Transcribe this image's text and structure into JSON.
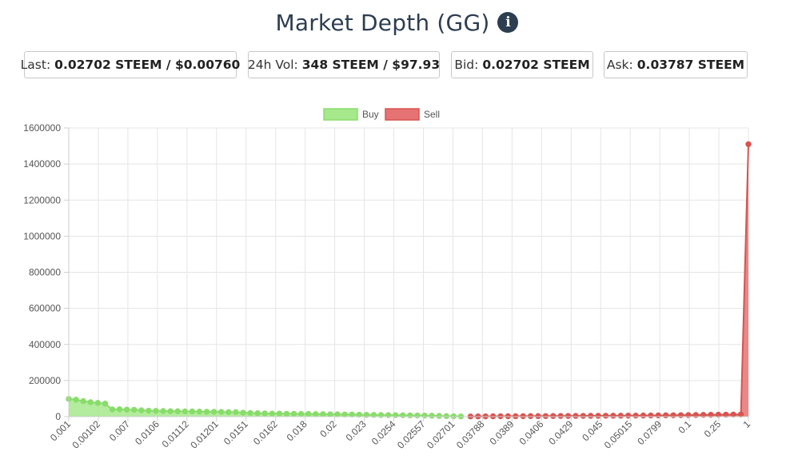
{
  "header": {
    "title": "Market Depth (GG)",
    "info_icon": "info-circle-icon"
  },
  "stats": {
    "last": {
      "label": "Last:",
      "value": "0.02702 STEEM / $0.00760"
    },
    "vol": {
      "label": "24h Vol:",
      "value": "348 STEEM / $97.93"
    },
    "bid": {
      "label": "Bid:",
      "value": "0.02702 STEEM"
    },
    "ask": {
      "label": "Ask:",
      "value": "0.03787 STEEM"
    }
  },
  "chart_data": {
    "type": "area",
    "legend": [
      "Buy",
      "Sell"
    ],
    "legend_position": "top-center",
    "colors": {
      "buy_fill": "#a6e98c",
      "buy_line": "#88dd6a",
      "sell_fill": "#e57373",
      "sell_line": "#d9534f"
    },
    "grid": true,
    "ylim": [
      0,
      1600000
    ],
    "yticks": [
      0,
      200000,
      400000,
      600000,
      800000,
      1000000,
      1200000,
      1400000,
      1600000
    ],
    "xtick_labels": [
      "0.001",
      "0.00102",
      "0.007",
      "0.0106",
      "0.01112",
      "0.01201",
      "0.0151",
      "0.0162",
      "0.018",
      "0.02",
      "0.023",
      "0.0254",
      "0.02557",
      "0.02701",
      "0.03788",
      "0.0389",
      "0.0406",
      "0.0429",
      "0.045",
      "0.05015",
      "0.0799",
      "0.1",
      "0.25",
      "1"
    ],
    "series": [
      {
        "name": "Buy",
        "values": [
          98000,
          94000,
          86000,
          80000,
          76000,
          72000,
          40000,
          41000,
          39000,
          38000,
          35000,
          33000,
          32000,
          31000,
          30000,
          30000,
          29000,
          29000,
          28000,
          27000,
          27000,
          26000,
          25000,
          25000,
          22000,
          20000,
          19000,
          18000,
          17000,
          17000,
          16000,
          16000,
          15000,
          15000,
          14000,
          14000,
          13000,
          13000,
          12000,
          12000,
          11000,
          10000,
          9500,
          9000,
          8500,
          8000,
          7500,
          7000,
          6500,
          6000,
          5000,
          4000,
          3000,
          2000,
          1000
        ]
      },
      {
        "name": "Sell",
        "values": [
          800,
          1200,
          1500,
          1800,
          2000,
          2200,
          2400,
          2600,
          2800,
          3000,
          3200,
          3400,
          3600,
          3800,
          4000,
          4200,
          4400,
          4600,
          4800,
          5000,
          5200,
          5500,
          5800,
          6100,
          6400,
          6800,
          7200,
          7600,
          8000,
          8500,
          9000,
          9500,
          10000,
          10500,
          11000,
          11500,
          12000,
          1510000
        ]
      }
    ]
  }
}
